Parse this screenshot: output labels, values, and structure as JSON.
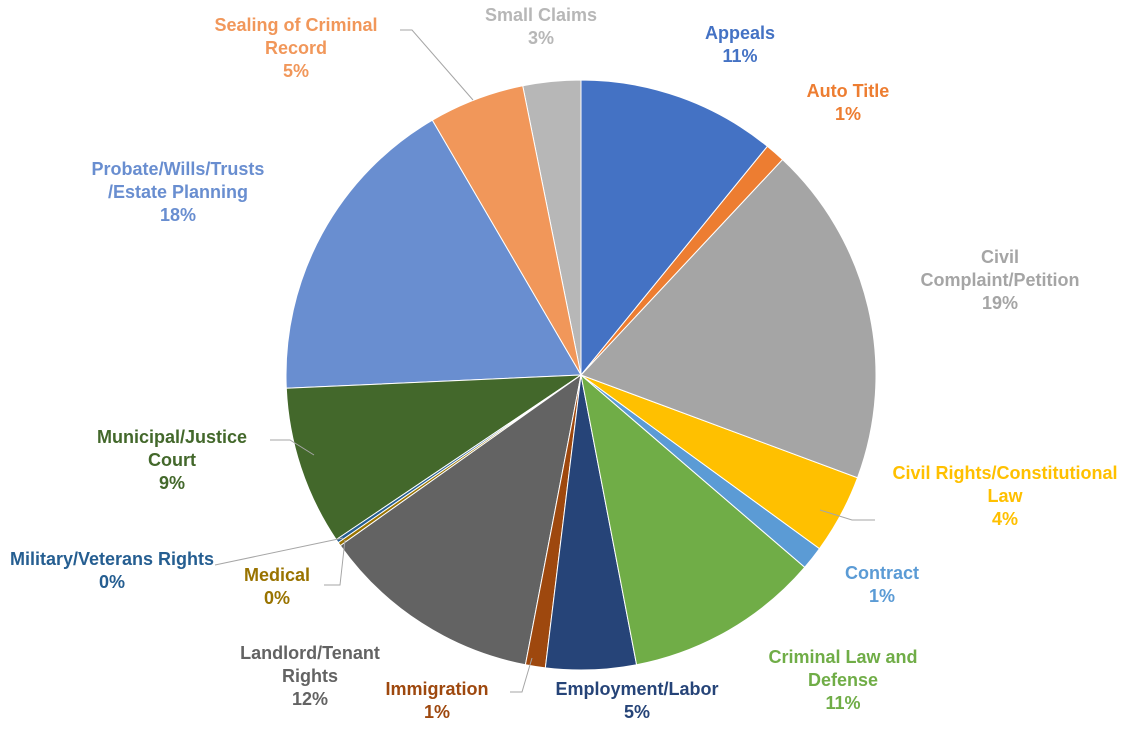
{
  "chart_data": {
    "type": "pie",
    "categories": [
      "Appeals",
      "Auto Title",
      "Civil Complaint/Petition",
      "Civil Rights/Constitutional Law",
      "Contract",
      "Criminal Law and Defense",
      "Employment/Labor",
      "Immigration",
      "Landlord/Tenant Rights",
      "Medical",
      "Military/Veterans Rights",
      "Municipal/Justice Court",
      "Probate/Wills/Trusts /Estate Planning",
      "Sealing of Criminal Record",
      "Small Claims"
    ],
    "values": [
      11,
      1.1,
      18.9,
      4.4,
      1.3,
      10.8,
      5,
      1.1,
      12.3,
      0.2,
      0.2,
      8.8,
      17.5,
      5.3,
      3.2
    ],
    "value_labels": [
      "11%",
      "1%",
      "19%",
      "4%",
      "1%",
      "11%",
      "5%",
      "1%",
      "12%",
      "0%",
      "0%",
      "9%",
      "18%",
      "5%",
      "3%"
    ],
    "colors": [
      "#4472c4",
      "#ed7d31",
      "#a5a5a5",
      "#ffc000",
      "#5b9bd5",
      "#70ad47",
      "#264478",
      "#9e480e",
      "#636363",
      "#997300",
      "#255e91",
      "#43682b",
      "#698ed0",
      "#f1975a",
      "#b7b7b7"
    ]
  }
}
